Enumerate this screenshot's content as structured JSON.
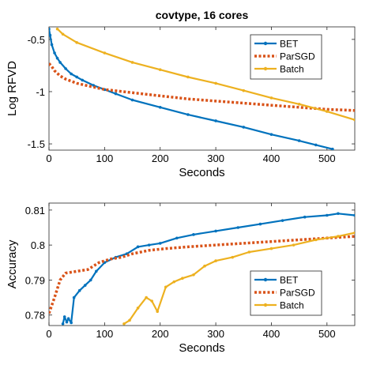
{
  "chart_data": [
    {
      "type": "line",
      "title": "covtype, 16 cores",
      "xlabel": "Seconds",
      "ylabel": "Log RFVD",
      "xlim": [
        0,
        550
      ],
      "ylim": [
        -1.56,
        -0.38
      ],
      "xticks": [
        0,
        100,
        200,
        300,
        400,
        500
      ],
      "xtick_labels": [
        "0",
        "100",
        "200",
        "300",
        "400",
        "500"
      ],
      "yticks": [
        -1.5,
        -1,
        -0.5
      ],
      "ytick_labels": [
        "-1.5",
        "-1",
        "-0.5"
      ],
      "grid": false,
      "legend_position": "top-right",
      "series": [
        {
          "name": "BET",
          "color": "#0072BD",
          "style": "solid-dot",
          "points": [
            [
              0,
              -0.4
            ],
            [
              2,
              -0.46
            ],
            [
              5,
              -0.55
            ],
            [
              10,
              -0.63
            ],
            [
              15,
              -0.68
            ],
            [
              20,
              -0.72
            ],
            [
              30,
              -0.78
            ],
            [
              40,
              -0.83
            ],
            [
              50,
              -0.86
            ],
            [
              60,
              -0.89
            ],
            [
              80,
              -0.94
            ],
            [
              100,
              -0.98
            ],
            [
              120,
              -1.02
            ],
            [
              150,
              -1.08
            ],
            [
              200,
              -1.15
            ],
            [
              250,
              -1.22
            ],
            [
              300,
              -1.28
            ],
            [
              350,
              -1.34
            ],
            [
              400,
              -1.41
            ],
            [
              450,
              -1.47
            ],
            [
              480,
              -1.51
            ],
            [
              510,
              -1.55
            ]
          ]
        },
        {
          "name": "ParSGD",
          "color": "#D95319",
          "style": "dotted",
          "points": [
            [
              0,
              -0.73
            ],
            [
              5,
              -0.76
            ],
            [
              10,
              -0.8
            ],
            [
              20,
              -0.85
            ],
            [
              30,
              -0.88
            ],
            [
              50,
              -0.92
            ],
            [
              75,
              -0.95
            ],
            [
              100,
              -0.98
            ],
            [
              150,
              -1.01
            ],
            [
              200,
              -1.04
            ],
            [
              250,
              -1.07
            ],
            [
              300,
              -1.09
            ],
            [
              350,
              -1.11
            ],
            [
              400,
              -1.13
            ],
            [
              450,
              -1.15
            ],
            [
              500,
              -1.17
            ],
            [
              550,
              -1.18
            ]
          ]
        },
        {
          "name": "Batch",
          "color": "#EDB120",
          "style": "solid-dot",
          "points": [
            [
              15,
              -0.4
            ],
            [
              25,
              -0.45
            ],
            [
              50,
              -0.53
            ],
            [
              100,
              -0.63
            ],
            [
              150,
              -0.72
            ],
            [
              200,
              -0.79
            ],
            [
              250,
              -0.86
            ],
            [
              300,
              -0.92
            ],
            [
              350,
              -0.99
            ],
            [
              400,
              -1.06
            ],
            [
              450,
              -1.12
            ],
            [
              500,
              -1.19
            ],
            [
              550,
              -1.27
            ]
          ]
        }
      ]
    },
    {
      "type": "line",
      "title": "",
      "xlabel": "Seconds",
      "ylabel": "Accuracy",
      "xlim": [
        0,
        550
      ],
      "ylim": [
        0.777,
        0.812
      ],
      "xticks": [
        0,
        100,
        200,
        300,
        400,
        500
      ],
      "xtick_labels": [
        "0",
        "100",
        "200",
        "300",
        "400",
        "500"
      ],
      "yticks": [
        0.78,
        0.79,
        0.8,
        0.81
      ],
      "ytick_labels": [
        "0.78",
        "0.79",
        "0.8",
        "0.81"
      ],
      "grid": false,
      "legend_position": "bottom-right",
      "series": [
        {
          "name": "BET",
          "color": "#0072BD",
          "style": "solid-dot",
          "points": [
            [
              25,
              0.7775
            ],
            [
              28,
              0.7795
            ],
            [
              32,
              0.778
            ],
            [
              35,
              0.779
            ],
            [
              40,
              0.7778
            ],
            [
              45,
              0.785
            ],
            [
              55,
              0.787
            ],
            [
              65,
              0.7885
            ],
            [
              75,
              0.79
            ],
            [
              85,
              0.7925
            ],
            [
              100,
              0.795
            ],
            [
              120,
              0.7965
            ],
            [
              140,
              0.7975
            ],
            [
              160,
              0.7995
            ],
            [
              180,
              0.8
            ],
            [
              200,
              0.8005
            ],
            [
              230,
              0.802
            ],
            [
              260,
              0.803
            ],
            [
              300,
              0.804
            ],
            [
              340,
              0.805
            ],
            [
              380,
              0.806
            ],
            [
              420,
              0.807
            ],
            [
              460,
              0.808
            ],
            [
              500,
              0.8085
            ],
            [
              520,
              0.809
            ],
            [
              550,
              0.8085
            ]
          ]
        },
        {
          "name": "ParSGD",
          "color": "#D95319",
          "style": "dotted",
          "points": [
            [
              0,
              0.7805
            ],
            [
              10,
              0.785
            ],
            [
              20,
              0.79
            ],
            [
              30,
              0.792
            ],
            [
              50,
              0.7925
            ],
            [
              70,
              0.793
            ],
            [
              90,
              0.795
            ],
            [
              110,
              0.796
            ],
            [
              130,
              0.7965
            ],
            [
              150,
              0.7975
            ],
            [
              180,
              0.7985
            ],
            [
              210,
              0.799
            ],
            [
              250,
              0.7995
            ],
            [
              300,
              0.8
            ],
            [
              350,
              0.8005
            ],
            [
              400,
              0.801
            ],
            [
              450,
              0.8015
            ],
            [
              500,
              0.802
            ],
            [
              550,
              0.8025
            ]
          ]
        },
        {
          "name": "Batch",
          "color": "#EDB120",
          "style": "solid-dot",
          "points": [
            [
              135,
              0.7775
            ],
            [
              145,
              0.7785
            ],
            [
              160,
              0.782
            ],
            [
              175,
              0.785
            ],
            [
              185,
              0.784
            ],
            [
              195,
              0.781
            ],
            [
              210,
              0.788
            ],
            [
              225,
              0.7895
            ],
            [
              240,
              0.7905
            ],
            [
              260,
              0.7915
            ],
            [
              280,
              0.794
            ],
            [
              300,
              0.7955
            ],
            [
              330,
              0.7965
            ],
            [
              360,
              0.798
            ],
            [
              400,
              0.799
            ],
            [
              440,
              0.8
            ],
            [
              480,
              0.8015
            ],
            [
              520,
              0.8025
            ],
            [
              550,
              0.8035
            ]
          ]
        }
      ]
    }
  ]
}
